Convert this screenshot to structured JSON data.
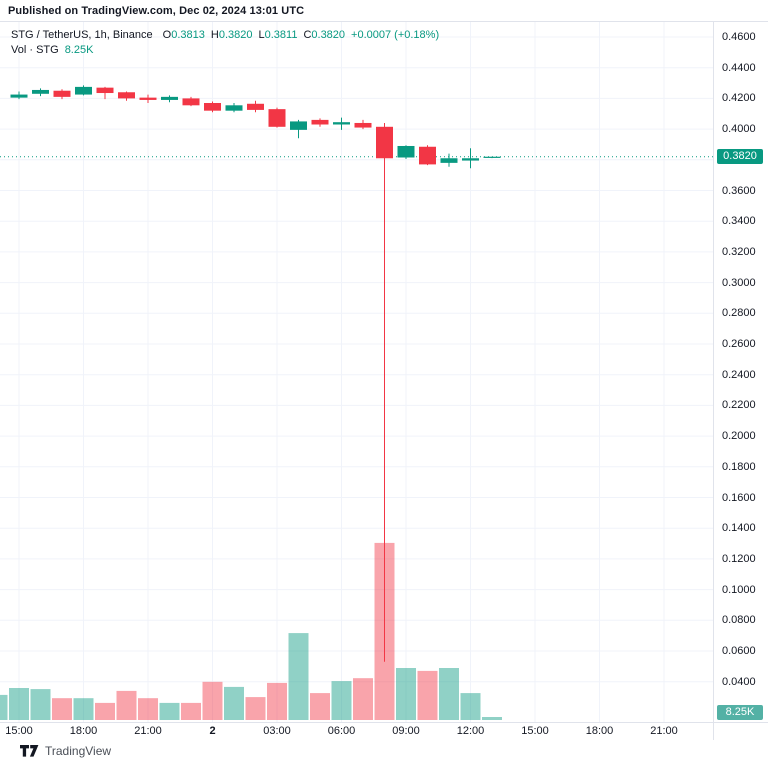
{
  "header": {
    "published": "Published on TradingView.com, Dec 02, 2024 13:01 UTC"
  },
  "legend": {
    "symbol": "STG / TetherUS, 1h, Binance",
    "ohlc": [
      {
        "label": "O",
        "value": "0.3813"
      },
      {
        "label": "H",
        "value": "0.3820"
      },
      {
        "label": "L",
        "value": "0.3811"
      },
      {
        "label": "C",
        "value": "0.3820"
      }
    ],
    "change": "+0.0007 (+0.18%)",
    "volume_label": "Vol · STG",
    "volume_value": "8.25K"
  },
  "price_scale": {
    "badge": "0.3820",
    "volume_badge": "8.25K",
    "labels": [
      {
        "price": 0.46,
        "text": "0.4600"
      },
      {
        "price": 0.44,
        "text": "0.4400"
      },
      {
        "price": 0.42,
        "text": "0.4200"
      },
      {
        "price": 0.4,
        "text": "0.4000"
      },
      {
        "price": 0.36,
        "text": "0.3600"
      },
      {
        "price": 0.34,
        "text": "0.3400"
      },
      {
        "price": 0.32,
        "text": "0.3200"
      },
      {
        "price": 0.3,
        "text": "0.3000"
      },
      {
        "price": 0.28,
        "text": "0.2800"
      },
      {
        "price": 0.26,
        "text": "0.2600"
      },
      {
        "price": 0.24,
        "text": "0.2400"
      },
      {
        "price": 0.22,
        "text": "0.2200"
      },
      {
        "price": 0.2,
        "text": "0.2000"
      },
      {
        "price": 0.18,
        "text": "0.1800"
      },
      {
        "price": 0.16,
        "text": "0.1600"
      },
      {
        "price": 0.14,
        "text": "0.1400"
      },
      {
        "price": 0.12,
        "text": "0.1200"
      },
      {
        "price": 0.1,
        "text": "0.1000"
      },
      {
        "price": 0.08,
        "text": "0.0800"
      },
      {
        "price": 0.06,
        "text": "0.0600"
      },
      {
        "price": 0.04,
        "text": "0.0400"
      }
    ]
  },
  "time_scale": {
    "ticks": [
      {
        "label": "15:00",
        "slot": 1
      },
      {
        "label": "18:00",
        "slot": 4
      },
      {
        "label": "21:00",
        "slot": 7
      },
      {
        "label": "2",
        "slot": 10,
        "day": true
      },
      {
        "label": "03:00",
        "slot": 13
      },
      {
        "label": "06:00",
        "slot": 16
      },
      {
        "label": "09:00",
        "slot": 19
      },
      {
        "label": "12:00",
        "slot": 22
      },
      {
        "label": "15:00",
        "slot": 25
      },
      {
        "label": "18:00",
        "slot": 28
      },
      {
        "label": "21:00",
        "slot": 31
      }
    ]
  },
  "footer": {
    "brand": "TradingView"
  },
  "chart_data": {
    "type": "candlestick_with_volume",
    "title": "STG / TetherUS, 1h, Binance",
    "y_axis": {
      "min": 0.04,
      "max": 0.46,
      "step": 0.02,
      "hidden_label_price": 0.38
    },
    "last_price": 0.382,
    "last_volume_k": 8.25,
    "grid": true,
    "colors": {
      "up": "#089981",
      "down": "#f23645",
      "volume_up": "rgba(8,153,129,0.45)",
      "volume_down": "rgba(242,54,69,0.45)",
      "grid": "#f0f3fa",
      "last_price_line": "#089981",
      "price_badge_bg": "#089981",
      "volume_badge_bg": "#53b1a5"
    },
    "candles": [
      {
        "t": "14:00",
        "o": null,
        "h": null,
        "l": null,
        "c": null,
        "v": 69,
        "dir": "up",
        "note": "partially visible at left edge"
      },
      {
        "t": "15:00",
        "o": 0.4205,
        "h": 0.4245,
        "l": 0.4195,
        "c": 0.4225,
        "v": 88,
        "dir": "up"
      },
      {
        "t": "16:00",
        "o": 0.423,
        "h": 0.4265,
        "l": 0.4215,
        "c": 0.4255,
        "v": 85,
        "dir": "up"
      },
      {
        "t": "17:00",
        "o": 0.425,
        "h": 0.426,
        "l": 0.4195,
        "c": 0.421,
        "v": 60,
        "dir": "down"
      },
      {
        "t": "18:00",
        "o": 0.4225,
        "h": 0.4285,
        "l": 0.422,
        "c": 0.4275,
        "v": 60,
        "dir": "up"
      },
      {
        "t": "19:00",
        "o": 0.427,
        "h": 0.4275,
        "l": 0.4195,
        "c": 0.4235,
        "v": 47,
        "dir": "down"
      },
      {
        "t": "20:00",
        "o": 0.424,
        "h": 0.4245,
        "l": 0.4185,
        "c": 0.42,
        "v": 80,
        "dir": "down"
      },
      {
        "t": "21:00",
        "o": 0.4205,
        "h": 0.4225,
        "l": 0.417,
        "c": 0.419,
        "v": 60,
        "dir": "down"
      },
      {
        "t": "22:00",
        "o": 0.419,
        "h": 0.422,
        "l": 0.4175,
        "c": 0.421,
        "v": 47,
        "dir": "up"
      },
      {
        "t": "23:00",
        "o": 0.42,
        "h": 0.421,
        "l": 0.415,
        "c": 0.4155,
        "v": 47,
        "dir": "down"
      },
      {
        "t": "00:00",
        "o": 0.417,
        "h": 0.418,
        "l": 0.411,
        "c": 0.412,
        "v": 105,
        "dir": "down"
      },
      {
        "t": "01:00",
        "o": 0.412,
        "h": 0.417,
        "l": 0.411,
        "c": 0.4155,
        "v": 91,
        "dir": "up"
      },
      {
        "t": "02:00",
        "o": 0.4165,
        "h": 0.4185,
        "l": 0.411,
        "c": 0.4125,
        "v": 63,
        "dir": "down"
      },
      {
        "t": "03:00",
        "o": 0.413,
        "h": 0.414,
        "l": 0.401,
        "c": 0.4015,
        "v": 102,
        "dir": "down"
      },
      {
        "t": "04:00",
        "o": 0.3995,
        "h": 0.406,
        "l": 0.394,
        "c": 0.405,
        "v": 239,
        "dir": "up"
      },
      {
        "t": "05:00",
        "o": 0.406,
        "h": 0.407,
        "l": 0.4015,
        "c": 0.403,
        "v": 74,
        "dir": "down"
      },
      {
        "t": "06:00",
        "o": 0.403,
        "h": 0.4075,
        "l": 0.3995,
        "c": 0.4045,
        "v": 107,
        "dir": "up"
      },
      {
        "t": "07:00",
        "o": 0.404,
        "h": 0.406,
        "l": 0.4,
        "c": 0.401,
        "v": 115,
        "dir": "down"
      },
      {
        "t": "08:00",
        "o": 0.4015,
        "h": 0.404,
        "l": 0.053,
        "c": 0.381,
        "v": 487,
        "dir": "down",
        "note": "flash-crash candle, long lower wick"
      },
      {
        "t": "09:00",
        "o": 0.3815,
        "h": 0.3895,
        "l": 0.3805,
        "c": 0.389,
        "v": 143,
        "dir": "up"
      },
      {
        "t": "10:00",
        "o": 0.3885,
        "h": 0.3895,
        "l": 0.3765,
        "c": 0.377,
        "v": 135,
        "dir": "down"
      },
      {
        "t": "11:00",
        "o": 0.378,
        "h": 0.384,
        "l": 0.3755,
        "c": 0.381,
        "v": 143,
        "dir": "up"
      },
      {
        "t": "12:00",
        "o": 0.3795,
        "h": 0.3875,
        "l": 0.3745,
        "c": 0.381,
        "v": 74,
        "dir": "up"
      },
      {
        "t": "13:00",
        "o": 0.3813,
        "h": 0.382,
        "l": 0.3811,
        "c": 0.382,
        "v": 8.25,
        "dir": "up",
        "note": "current candle"
      }
    ]
  }
}
